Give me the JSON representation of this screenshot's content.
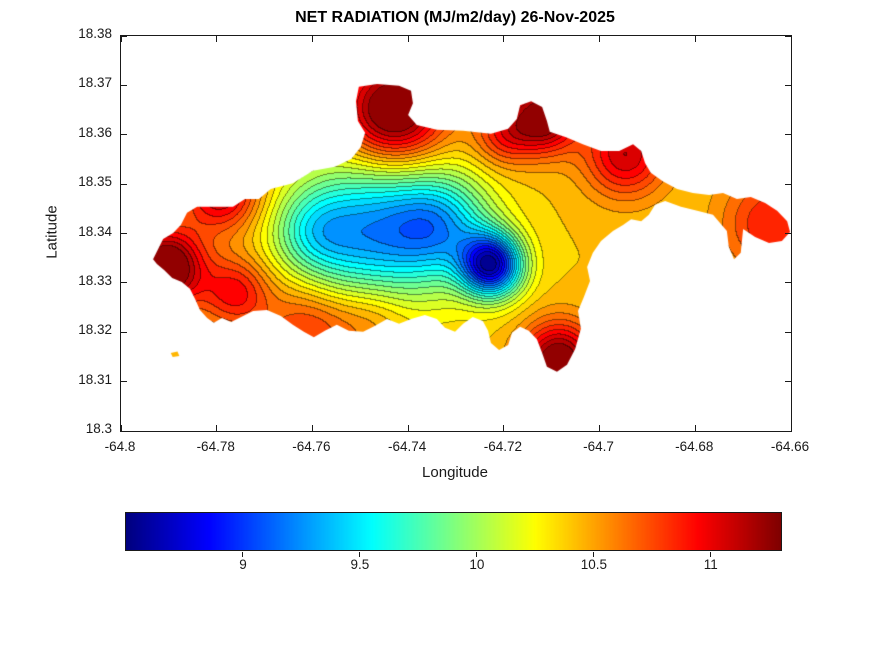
{
  "chart_data": {
    "type": "filled-contour-map",
    "title": "NET RADIATION (MJ/m2/day) 26-Nov-2025",
    "xlabel": "Longitude",
    "ylabel": "Latitude",
    "xlim": [
      -64.8,
      -64.66
    ],
    "ylim": [
      18.3,
      18.38
    ],
    "xticks": [
      -64.8,
      -64.78,
      -64.76,
      -64.74,
      -64.72,
      -64.7,
      -64.68,
      -64.66
    ],
    "xtick_labels": [
      "-64.8",
      "-64.78",
      "-64.76",
      "-64.74",
      "-64.72",
      "-64.7",
      "-64.68",
      "-64.66"
    ],
    "yticks": [
      18.3,
      18.31,
      18.32,
      18.33,
      18.34,
      18.35,
      18.36,
      18.37,
      18.38
    ],
    "ytick_labels": [
      "18.3",
      "18.31",
      "18.32",
      "18.33",
      "18.34",
      "18.35",
      "18.36",
      "18.37",
      "18.38"
    ],
    "grid": false,
    "colormap": "jet",
    "vmin": 8.5,
    "vmax": 11.3,
    "contour_interval": 0.1,
    "land_mask_note": "values shown only over island landmass, white elsewhere",
    "colorbar": {
      "orientation": "horizontal",
      "position": "south",
      "ticks": [
        9,
        9.5,
        10,
        10.5,
        11
      ],
      "labels": [
        "9",
        "9.5",
        "10",
        "10.5",
        "11"
      ]
    },
    "polygons_lonlat": [
      [
        [
          -64.7933,
          18.3348
        ],
        [
          -64.7912,
          18.3389
        ],
        [
          -64.7891,
          18.3401
        ],
        [
          -64.7875,
          18.3417
        ],
        [
          -64.7862,
          18.3442
        ],
        [
          -64.7841,
          18.3454
        ],
        [
          -64.7766,
          18.3454
        ],
        [
          -64.7741,
          18.347
        ],
        [
          -64.7712,
          18.347
        ],
        [
          -64.7687,
          18.349
        ],
        [
          -64.7641,
          18.3502
        ],
        [
          -64.7599,
          18.3527
        ],
        [
          -64.7553,
          18.3535
        ],
        [
          -64.7519,
          18.3551
        ],
        [
          -64.7499,
          18.3575
        ],
        [
          -64.749,
          18.3604
        ],
        [
          -64.7505,
          18.3628
        ],
        [
          -64.7509,
          18.3668
        ],
        [
          -64.7503,
          18.3697
        ],
        [
          -64.7465,
          18.3703
        ],
        [
          -64.7419,
          18.3699
        ],
        [
          -64.7394,
          18.3689
        ],
        [
          -64.739,
          18.3664
        ],
        [
          -64.74,
          18.364
        ],
        [
          -64.7382,
          18.362
        ],
        [
          -64.734,
          18.361
        ],
        [
          -64.7285,
          18.3608
        ],
        [
          -64.7227,
          18.3602
        ],
        [
          -64.7191,
          18.3612
        ],
        [
          -64.7173,
          18.3632
        ],
        [
          -64.7166,
          18.366
        ],
        [
          -64.7143,
          18.3668
        ],
        [
          -64.712,
          18.3656
        ],
        [
          -64.711,
          18.3628
        ],
        [
          -64.7104,
          18.3606
        ],
        [
          -64.707,
          18.3595
        ],
        [
          -64.7035,
          18.3581
        ],
        [
          -64.6997,
          18.3567
        ],
        [
          -64.6959,
          18.3567
        ],
        [
          -64.693,
          18.3581
        ],
        [
          -64.6913,
          18.3567
        ],
        [
          -64.6905,
          18.3543
        ],
        [
          -64.6893,
          18.3523
        ],
        [
          -64.6868,
          18.3506
        ],
        [
          -64.6838,
          18.349
        ],
        [
          -64.6805,
          18.3482
        ],
        [
          -64.6771,
          18.3478
        ],
        [
          -64.6742,
          18.3482
        ],
        [
          -64.6713,
          18.347
        ],
        [
          -64.6684,
          18.3474
        ],
        [
          -64.6654,
          18.3462
        ],
        [
          -64.6629,
          18.3446
        ],
        [
          -64.6608,
          18.3425
        ],
        [
          -64.6602,
          18.3403
        ],
        [
          -64.6619,
          18.3385
        ],
        [
          -64.6646,
          18.3381
        ],
        [
          -64.6675,
          18.3393
        ],
        [
          -64.67,
          18.3409
        ],
        [
          -64.6705,
          18.3361
        ],
        [
          -64.6719,
          18.3348
        ],
        [
          -64.673,
          18.3373
        ],
        [
          -64.6734,
          18.3405
        ],
        [
          -64.6763,
          18.3438
        ],
        [
          -64.6796,
          18.3446
        ],
        [
          -64.683,
          18.3454
        ],
        [
          -64.6863,
          18.3466
        ],
        [
          -64.6884,
          18.3458
        ],
        [
          -64.6897,
          18.3438
        ],
        [
          -64.6913,
          18.3425
        ],
        [
          -64.6934,
          18.3429
        ],
        [
          -64.6951,
          18.3417
        ],
        [
          -64.6972,
          18.3405
        ],
        [
          -64.6997,
          18.3385
        ],
        [
          -64.7014,
          18.3361
        ],
        [
          -64.7026,
          18.3332
        ],
        [
          -64.702,
          18.3304
        ],
        [
          -64.7033,
          18.3271
        ],
        [
          -64.7045,
          18.3243
        ],
        [
          -64.7039,
          18.3207
        ],
        [
          -64.7051,
          18.3166
        ],
        [
          -64.7068,
          18.3134
        ],
        [
          -64.7089,
          18.312
        ],
        [
          -64.711,
          18.313
        ],
        [
          -64.712,
          18.3158
        ],
        [
          -64.7131,
          18.3186
        ],
        [
          -64.7148,
          18.3203
        ],
        [
          -64.7166,
          18.3211
        ],
        [
          -64.7183,
          18.3199
        ],
        [
          -64.7191,
          18.3174
        ],
        [
          -64.721,
          18.3164
        ],
        [
          -64.7227,
          18.3178
        ],
        [
          -64.7233,
          18.3203
        ],
        [
          -64.7244,
          18.3223
        ],
        [
          -64.7265,
          18.3231
        ],
        [
          -64.7285,
          18.3217
        ],
        [
          -64.7302,
          18.3201
        ],
        [
          -64.7323,
          18.3209
        ],
        [
          -64.734,
          18.3227
        ],
        [
          -64.7365,
          18.3235
        ],
        [
          -64.7394,
          18.3227
        ],
        [
          -64.7419,
          18.3217
        ],
        [
          -64.7444,
          18.3227
        ],
        [
          -64.7469,
          18.3213
        ],
        [
          -64.7494,
          18.3201
        ],
        [
          -64.7524,
          18.3203
        ],
        [
          -64.7549,
          18.3215
        ],
        [
          -64.7574,
          18.3203
        ],
        [
          -64.7597,
          18.319
        ],
        [
          -64.7618,
          18.3201
        ],
        [
          -64.7641,
          18.3215
        ],
        [
          -64.7666,
          18.3233
        ],
        [
          -64.7695,
          18.3245
        ],
        [
          -64.7724,
          18.3243
        ],
        [
          -64.7749,
          18.3231
        ],
        [
          -64.777,
          18.3221
        ],
        [
          -64.7789,
          18.3229
        ],
        [
          -64.7806,
          18.3219
        ],
        [
          -64.782,
          18.3229
        ],
        [
          -64.7835,
          18.3245
        ],
        [
          -64.7845,
          18.3267
        ],
        [
          -64.7856,
          18.3288
        ],
        [
          -64.7873,
          18.3302
        ],
        [
          -64.7893,
          18.331
        ],
        [
          -64.791,
          18.3326
        ],
        [
          -64.7925,
          18.3338
        ]
      ],
      [
        [
          -64.7896,
          18.3158
        ],
        [
          -64.7882,
          18.3161
        ],
        [
          -64.7878,
          18.3152
        ],
        [
          -64.7892,
          18.315
        ]
      ]
    ],
    "field_model": {
      "description": "net radiation surface (MJ/m2/day) approximated as base value plus gaussian anomalies",
      "base": 10.4,
      "gaussians": [
        {
          "lon": -64.7225,
          "lat": 18.3335,
          "sigma": 0.0045,
          "amp": -1.65
        },
        {
          "lon": -64.748,
          "lat": 18.34,
          "sigma": 0.0105,
          "amp": -1.05
        },
        {
          "lon": -64.733,
          "lat": 18.3415,
          "sigma": 0.0075,
          "amp": -0.85
        },
        {
          "lon": -64.76,
          "lat": 18.3405,
          "sigma": 0.006,
          "amp": -0.45
        },
        {
          "lon": -64.743,
          "lat": 18.3645,
          "sigma": 0.0075,
          "amp": 1.1
        },
        {
          "lon": -64.7115,
          "lat": 18.3635,
          "sigma": 0.005,
          "amp": 0.95
        },
        {
          "lon": -64.6945,
          "lat": 18.356,
          "sigma": 0.006,
          "amp": 0.7
        },
        {
          "lon": -64.7905,
          "lat": 18.333,
          "sigma": 0.0055,
          "amp": 1.1
        },
        {
          "lon": -64.779,
          "lat": 18.3485,
          "sigma": 0.0055,
          "amp": 0.75
        },
        {
          "lon": -64.7085,
          "lat": 18.314,
          "sigma": 0.0055,
          "amp": 1.0
        },
        {
          "lon": -64.72,
          "lat": 18.36,
          "sigma": 0.0045,
          "amp": 0.45
        },
        {
          "lon": -64.664,
          "lat": 18.342,
          "sigma": 0.0075,
          "amp": 0.5
        },
        {
          "lon": -64.761,
          "lat": 18.321,
          "sigma": 0.0065,
          "amp": 0.45
        },
        {
          "lon": -64.776,
          "lat": 18.328,
          "sigma": 0.005,
          "amp": 0.55
        },
        {
          "lon": -64.748,
          "lat": 18.323,
          "sigma": 0.006,
          "amp": 0.3
        }
      ]
    }
  }
}
